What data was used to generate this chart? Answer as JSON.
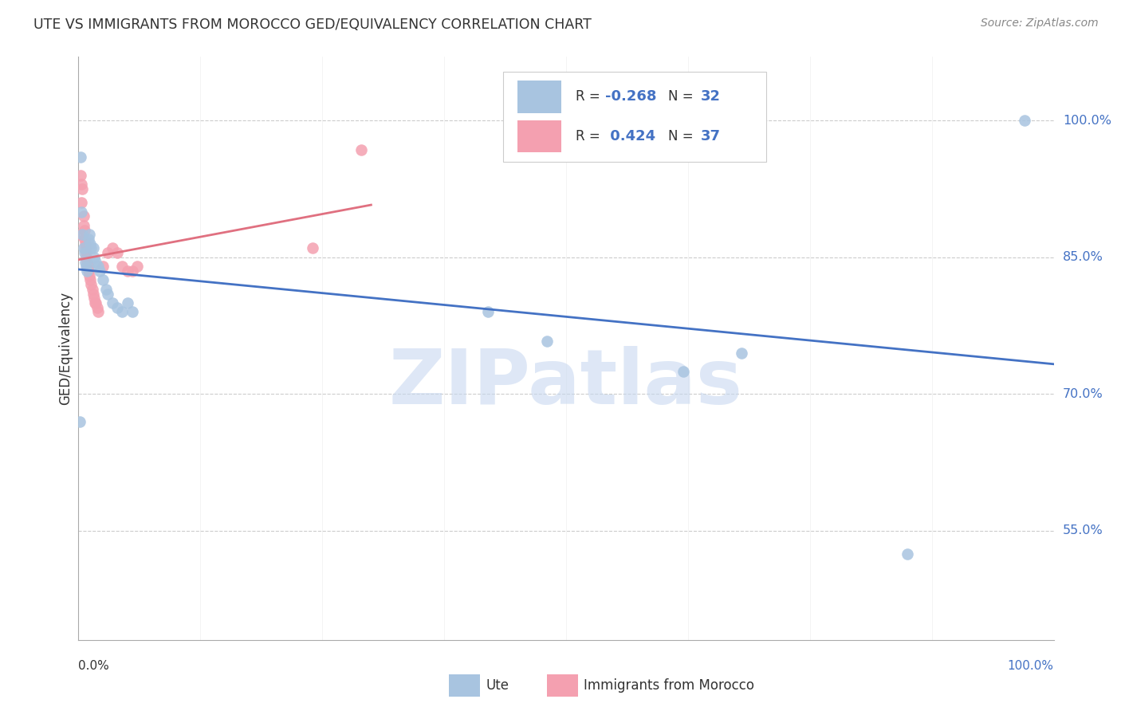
{
  "title": "UTE VS IMMIGRANTS FROM MOROCCO GED/EQUIVALENCY CORRELATION CHART",
  "source": "Source: ZipAtlas.com",
  "ylabel": "GED/Equivalency",
  "ytick_labels": [
    "55.0%",
    "70.0%",
    "85.0%",
    "100.0%"
  ],
  "ytick_values": [
    0.55,
    0.7,
    0.85,
    1.0
  ],
  "legend_label_blue": "Ute",
  "legend_label_pink": "Immigrants from Morocco",
  "color_blue": "#a8c4e0",
  "color_pink": "#f4a0b0",
  "color_blue_line": "#4472c4",
  "color_pink_line": "#e07080",
  "watermark": "ZIPatlas",
  "watermark_color": "#c8d8f0",
  "ute_x": [
    0.001,
    0.002,
    0.003,
    0.004,
    0.005,
    0.006,
    0.007,
    0.008,
    0.009,
    0.01,
    0.011,
    0.012,
    0.013,
    0.015,
    0.016,
    0.018,
    0.02,
    0.022,
    0.025,
    0.028,
    0.03,
    0.035,
    0.04,
    0.045,
    0.05,
    0.055,
    0.42,
    0.48,
    0.62,
    0.68,
    0.85,
    0.97
  ],
  "ute_y": [
    0.67,
    0.96,
    0.9,
    0.875,
    0.86,
    0.855,
    0.845,
    0.84,
    0.835,
    0.87,
    0.875,
    0.865,
    0.86,
    0.86,
    0.85,
    0.845,
    0.84,
    0.835,
    0.825,
    0.815,
    0.81,
    0.8,
    0.795,
    0.79,
    0.8,
    0.79,
    0.79,
    0.758,
    0.725,
    0.745,
    0.524,
    1.0
  ],
  "morocco_x": [
    0.001,
    0.002,
    0.003,
    0.003,
    0.004,
    0.005,
    0.005,
    0.006,
    0.006,
    0.007,
    0.007,
    0.008,
    0.008,
    0.009,
    0.009,
    0.01,
    0.01,
    0.011,
    0.012,
    0.013,
    0.014,
    0.015,
    0.016,
    0.017,
    0.018,
    0.019,
    0.02,
    0.025,
    0.03,
    0.035,
    0.04,
    0.045,
    0.05,
    0.055,
    0.06,
    0.24,
    0.29
  ],
  "morocco_y": [
    0.875,
    0.94,
    0.93,
    0.91,
    0.925,
    0.895,
    0.885,
    0.88,
    0.87,
    0.865,
    0.86,
    0.855,
    0.85,
    0.845,
    0.84,
    0.84,
    0.835,
    0.83,
    0.825,
    0.82,
    0.815,
    0.81,
    0.805,
    0.8,
    0.8,
    0.795,
    0.79,
    0.84,
    0.855,
    0.86,
    0.855,
    0.84,
    0.835,
    0.835,
    0.84,
    0.86,
    0.968
  ]
}
